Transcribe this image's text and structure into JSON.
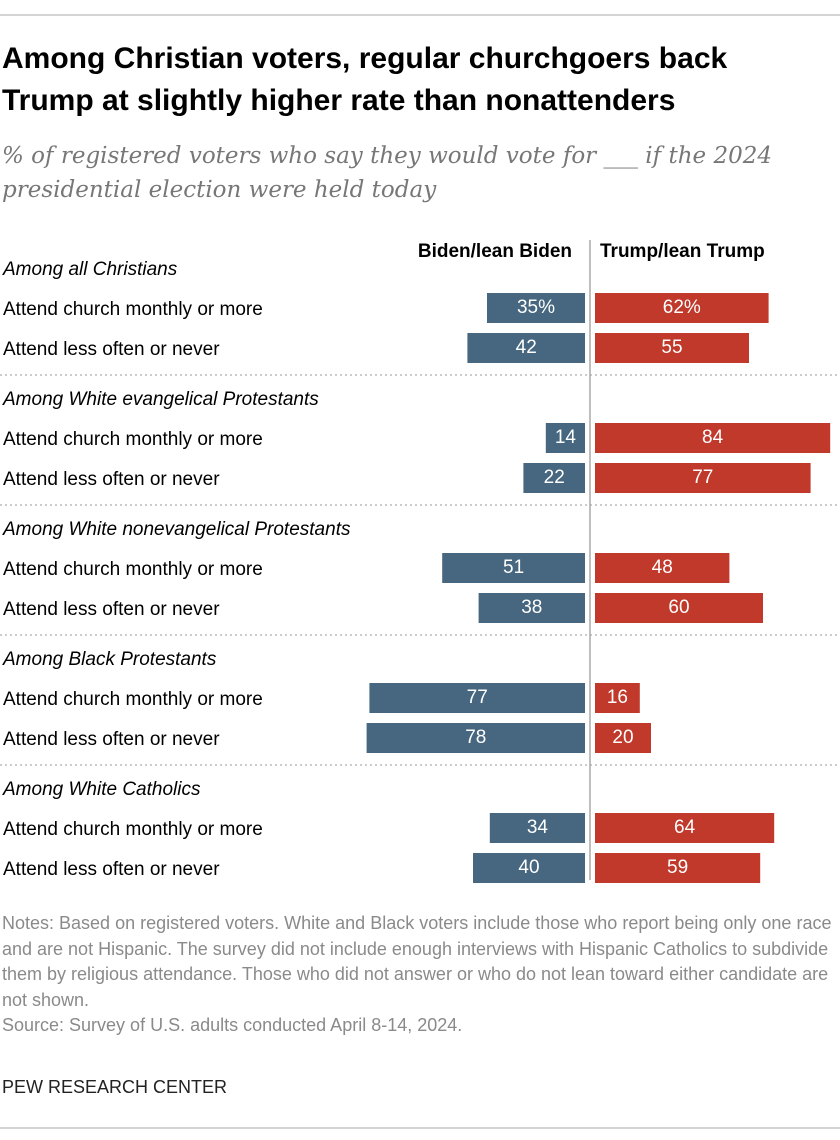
{
  "chart_data": {
    "type": "diverging-bar",
    "title": "Among Christian voters, regular churchgoers back Trump at slightly higher rate than nonattenders",
    "subtitle": "% of registered voters who say they would vote for ___ if the 2024 presidential election were held today",
    "groups": [
      {
        "name": "Among all Christians",
        "categories": [
          "Attend church monthly or more",
          "Attend less often or never"
        ]
      },
      {
        "name": "Among White evangelical Protestants",
        "categories": [
          "Attend church monthly or more",
          "Attend less often or never"
        ]
      },
      {
        "name": "Among White nonevangelical Protestants",
        "categories": [
          "Attend church monthly or more",
          "Attend less often or never"
        ]
      },
      {
        "name": "Among Black Protestants",
        "categories": [
          "Attend church monthly or more",
          "Attend less often or never"
        ]
      },
      {
        "name": "Among White Catholics",
        "categories": [
          "Attend church monthly or more",
          "Attend less often or never"
        ]
      }
    ],
    "series": [
      {
        "name": "Biden/lean Biden",
        "color": "#46677f",
        "values": [
          35,
          42,
          14,
          22,
          51,
          38,
          77,
          78,
          34,
          40
        ],
        "value_labels": [
          "35%",
          "42",
          "14",
          "22",
          "51",
          "38",
          "77",
          "78",
          "34",
          "40"
        ]
      },
      {
        "name": "Trump/lean Trump",
        "color": "#c0392b",
        "values": [
          62,
          55,
          84,
          77,
          48,
          60,
          16,
          20,
          64,
          59
        ],
        "value_labels": [
          "62%",
          "55",
          "84",
          "77",
          "48",
          "60",
          "16",
          "20",
          "64",
          "59"
        ]
      }
    ],
    "note": "Notes: Based on registered voters. White and Black voters include those who report being only one race and are not Hispanic. The survey did not include enough interviews with Hispanic Catholics to subdivide them by religious attendance. Those who did not answer or who do not lean toward either candidate are not shown.",
    "source": "Source: Survey of U.S. adults conducted April 8-14, 2024.",
    "credit": "PEW RESEARCH CENTER"
  }
}
